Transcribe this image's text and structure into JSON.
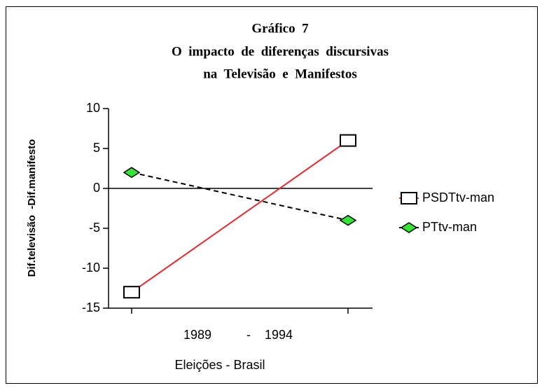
{
  "chart_data": {
    "type": "line",
    "title": [
      "Gráfico  7",
      "O  impacto  de  diferenças  discursivas",
      "na  Televisão  e  Manifestos"
    ],
    "categories": [
      null,
      null
    ],
    "x_axis_text": "1989          -    1994",
    "xlabel": "Eleições - Brasil",
    "ylabel": "Dif.televisão  -Dif.manifesto",
    "ylim": [
      -15,
      10
    ],
    "yticks": [
      -15,
      -10,
      -5,
      0,
      5,
      10
    ],
    "series": [
      {
        "name": "PSDTtv-man",
        "color": "#e8262a",
        "marker": "square",
        "dash": false,
        "values": [
          -13,
          6
        ]
      },
      {
        "name": "PTtv-man",
        "color": "#000000",
        "marker": "diamond",
        "marker_color": "#33e633",
        "dash": true,
        "values": [
          2,
          -4
        ]
      }
    ]
  }
}
